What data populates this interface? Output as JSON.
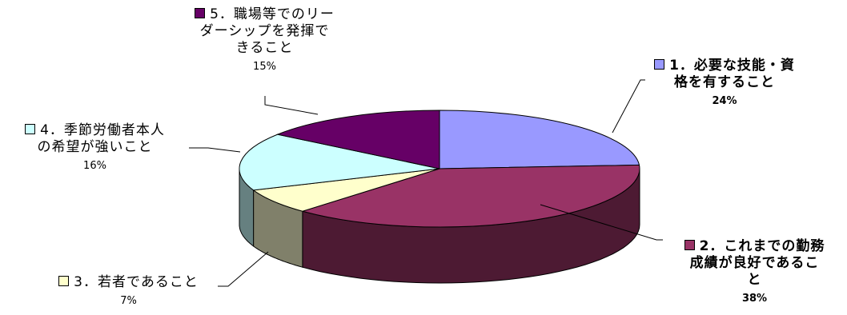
{
  "chart_data": {
    "type": "pie",
    "style": "3d",
    "slices": [
      {
        "label_lines": [
          "1．必要な技能・資",
          "格を有すること"
        ],
        "value": 24,
        "percent_label": "24%",
        "color": "#9999FF",
        "side": "#6E6EB8",
        "bold": true
      },
      {
        "label_lines": [
          "2．これまでの勤務",
          "成績が良好であるこ",
          "と"
        ],
        "value": 38,
        "percent_label": "38%",
        "color": "#993366",
        "side": "#4D1A33",
        "bold": true
      },
      {
        "label_lines": [
          "3．若者であること"
        ],
        "value": 7,
        "percent_label": "7%",
        "color": "#FFFFCC",
        "side": "#80806A",
        "bold": false
      },
      {
        "label_lines": [
          "4．季節労働者本人",
          "の希望が強いこと"
        ],
        "value": 16,
        "percent_label": "16%",
        "color": "#CCFFFF",
        "side": "#668080",
        "bold": false
      },
      {
        "label_lines": [
          "5．職場等でのリー",
          "ダーシップを発揮で",
          "きること"
        ],
        "value": 15,
        "percent_label": "15%",
        "color": "#660066",
        "side": "#330033",
        "bold": false
      }
    ]
  }
}
